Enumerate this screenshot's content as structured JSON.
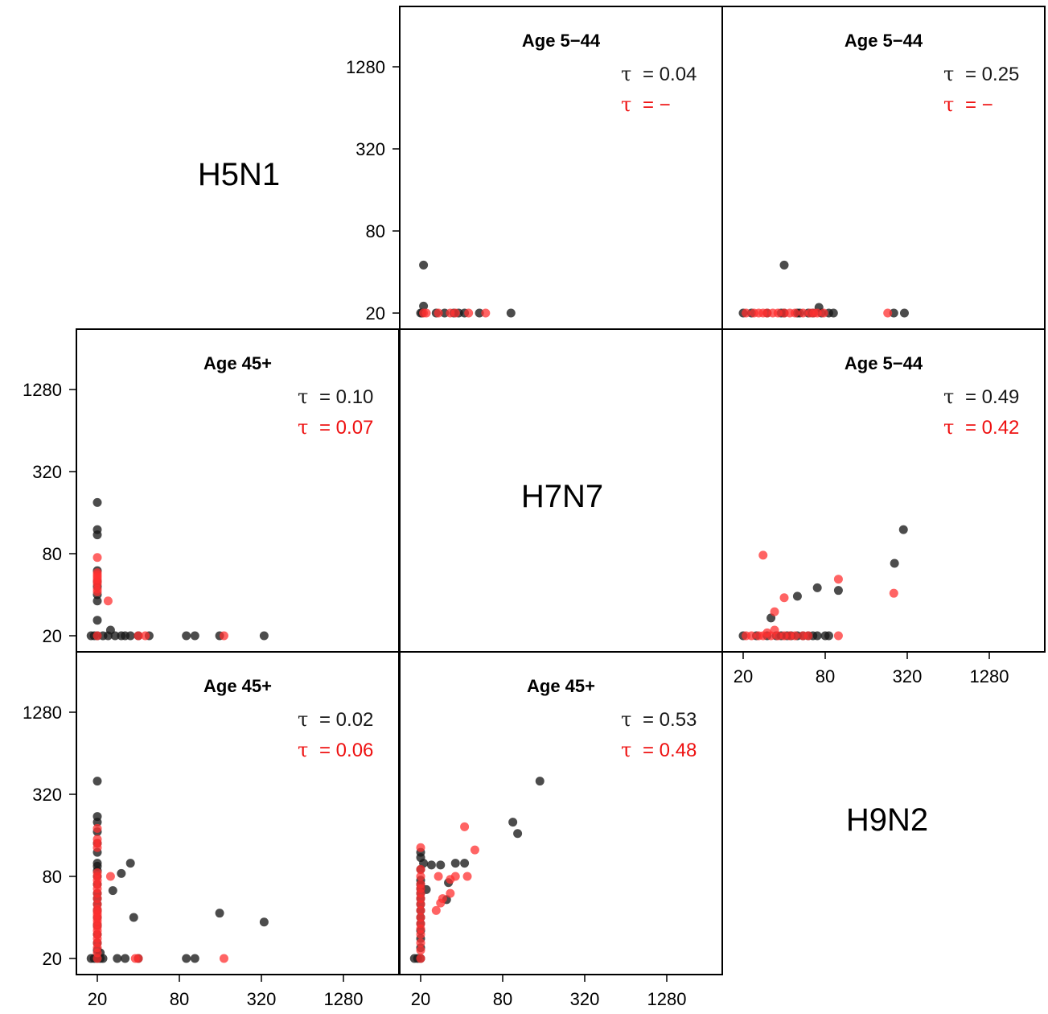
{
  "colors": {
    "black": "#1a1a1a",
    "red": "#ff3030",
    "red_text": "#ee1111"
  },
  "chart_data": {
    "type": "scatter",
    "scale": "log2",
    "axis_range": [
      16,
      2900
    ],
    "ticks": [
      {
        "value": 20,
        "label": "20"
      },
      {
        "value": 80,
        "label": "80"
      },
      {
        "value": 320,
        "label": "320"
      },
      {
        "value": 1280,
        "label": "1280"
      }
    ],
    "diagonal": [
      "H5N1",
      "H7N7",
      "H9N2"
    ],
    "tau_symbol": "τ",
    "panels": [
      {
        "id": "p12",
        "row": 0,
        "col": 1,
        "title": "Age 5−44",
        "tau_black": "= 0.04",
        "tau_red": "= −",
        "black": [
          [
            20,
            20
          ],
          [
            20.5,
            20
          ],
          [
            21,
            22.5
          ],
          [
            21,
            45
          ],
          [
            26,
            20
          ],
          [
            30,
            20
          ],
          [
            35,
            20
          ],
          [
            38,
            20
          ],
          [
            42,
            20
          ],
          [
            54,
            20
          ],
          [
            92,
            20
          ]
        ],
        "red": [
          [
            21,
            20
          ],
          [
            22,
            20
          ],
          [
            27,
            20
          ],
          [
            33,
            20
          ],
          [
            36,
            20
          ],
          [
            45,
            20
          ],
          [
            60,
            20
          ]
        ]
      },
      {
        "id": "p13",
        "row": 0,
        "col": 2,
        "title": "Age 5−44",
        "tau_black": "= 0.25",
        "tau_red": "= −",
        "black": [
          [
            20,
            20
          ],
          [
            23,
            20
          ],
          [
            30,
            20
          ],
          [
            38,
            20
          ],
          [
            40,
            20
          ],
          [
            40,
            45
          ],
          [
            50,
            20
          ],
          [
            52,
            20
          ],
          [
            60,
            20
          ],
          [
            65,
            20
          ],
          [
            72,
            22
          ],
          [
            75,
            20
          ],
          [
            85,
            20
          ],
          [
            92,
            20
          ],
          [
            255,
            20
          ],
          [
            305,
            20
          ]
        ],
        "red": [
          [
            21,
            20
          ],
          [
            24,
            20
          ],
          [
            26,
            20
          ],
          [
            28,
            20
          ],
          [
            30,
            20
          ],
          [
            33,
            20
          ],
          [
            36,
            20
          ],
          [
            40,
            20
          ],
          [
            44,
            20
          ],
          [
            48,
            20
          ],
          [
            55,
            20
          ],
          [
            62,
            20
          ],
          [
            66,
            20
          ],
          [
            70,
            20
          ],
          [
            78,
            20
          ],
          [
            230,
            20
          ]
        ]
      },
      {
        "id": "p21",
        "row": 1,
        "col": 0,
        "title": "Age 45+",
        "tau_black": "= 0.10",
        "tau_red": "= 0.07",
        "black": [
          [
            18,
            20
          ],
          [
            19,
            20
          ],
          [
            20,
            20
          ],
          [
            20,
            26
          ],
          [
            20,
            36
          ],
          [
            20,
            40
          ],
          [
            20,
            46
          ],
          [
            20,
            50
          ],
          [
            20,
            60
          ],
          [
            20,
            110
          ],
          [
            20,
            120
          ],
          [
            20,
            190
          ],
          [
            22,
            20
          ],
          [
            24,
            20
          ],
          [
            25,
            22
          ],
          [
            27,
            20
          ],
          [
            30,
            20
          ],
          [
            32,
            20
          ],
          [
            35,
            20
          ],
          [
            40,
            20
          ],
          [
            48,
            20
          ],
          [
            90,
            20
          ],
          [
            104,
            20
          ],
          [
            158,
            20
          ],
          [
            335,
            20
          ]
        ],
        "red": [
          [
            20,
            20
          ],
          [
            20,
            42
          ],
          [
            20,
            44
          ],
          [
            20,
            48
          ],
          [
            20,
            50
          ],
          [
            20,
            52
          ],
          [
            20,
            54
          ],
          [
            20,
            56
          ],
          [
            20,
            58
          ],
          [
            20,
            75
          ],
          [
            24,
            36
          ],
          [
            40,
            20
          ],
          [
            45,
            20
          ],
          [
            170,
            20
          ]
        ]
      },
      {
        "id": "p23",
        "row": 1,
        "col": 2,
        "title": "Age 5−44",
        "tau_black": "= 0.49",
        "tau_red": "= 0.42",
        "black": [
          [
            20,
            20
          ],
          [
            25,
            20
          ],
          [
            30,
            20
          ],
          [
            35,
            20
          ],
          [
            38,
            20
          ],
          [
            42,
            20
          ],
          [
            45,
            20
          ],
          [
            50,
            20
          ],
          [
            55,
            20
          ],
          [
            60,
            20
          ],
          [
            65,
            20
          ],
          [
            70,
            20
          ],
          [
            80,
            20
          ],
          [
            85,
            20
          ],
          [
            32,
            27
          ],
          [
            50,
            39
          ],
          [
            70,
            45
          ],
          [
            100,
            43
          ],
          [
            258,
            68
          ],
          [
            300,
            120
          ]
        ],
        "red": [
          [
            21,
            20
          ],
          [
            23,
            20
          ],
          [
            26,
            20
          ],
          [
            28,
            20
          ],
          [
            30,
            21
          ],
          [
            32,
            20
          ],
          [
            34,
            22
          ],
          [
            36,
            20
          ],
          [
            40,
            20
          ],
          [
            44,
            20
          ],
          [
            48,
            20
          ],
          [
            55,
            20
          ],
          [
            60,
            20
          ],
          [
            100,
            20
          ],
          [
            28,
            78
          ],
          [
            34,
            30
          ],
          [
            40,
            38
          ],
          [
            100,
            52
          ],
          [
            255,
            41
          ]
        ]
      },
      {
        "id": "p31",
        "row": 2,
        "col": 0,
        "title": "Age 45+",
        "tau_black": "= 0.02",
        "tau_red": "= 0.06",
        "black": [
          [
            18,
            20
          ],
          [
            19,
            20
          ],
          [
            20,
            20
          ],
          [
            20,
            23
          ],
          [
            20,
            26
          ],
          [
            20,
            30
          ],
          [
            20,
            35
          ],
          [
            20,
            40
          ],
          [
            20,
            45
          ],
          [
            20,
            50
          ],
          [
            20,
            55
          ],
          [
            20,
            60
          ],
          [
            20,
            70
          ],
          [
            20,
            80
          ],
          [
            20,
            88
          ],
          [
            20,
            95
          ],
          [
            20,
            100
          ],
          [
            20,
            120
          ],
          [
            20,
            140
          ],
          [
            20,
            170
          ],
          [
            20,
            200
          ],
          [
            20,
            220
          ],
          [
            20,
            400
          ],
          [
            21,
            22
          ],
          [
            21,
            20
          ],
          [
            22,
            20
          ],
          [
            26,
            63
          ],
          [
            28,
            20
          ],
          [
            30,
            84
          ],
          [
            32,
            20
          ],
          [
            35,
            100
          ],
          [
            37,
            40
          ],
          [
            40,
            20
          ],
          [
            90,
            20
          ],
          [
            104,
            20
          ],
          [
            158,
            43
          ],
          [
            335,
            37
          ]
        ],
        "red": [
          [
            20,
            20
          ],
          [
            20,
            22
          ],
          [
            20,
            24
          ],
          [
            20,
            26
          ],
          [
            20,
            28
          ],
          [
            20,
            30
          ],
          [
            20,
            32
          ],
          [
            20,
            34
          ],
          [
            20,
            36
          ],
          [
            20,
            38
          ],
          [
            20,
            40
          ],
          [
            20,
            42
          ],
          [
            20,
            44
          ],
          [
            20,
            46
          ],
          [
            20,
            50
          ],
          [
            20,
            55
          ],
          [
            20,
            60
          ],
          [
            20,
            65
          ],
          [
            20,
            70
          ],
          [
            20,
            75
          ],
          [
            20,
            80
          ],
          [
            20,
            85
          ],
          [
            20,
            130
          ],
          [
            20,
            140
          ],
          [
            20,
            150
          ],
          [
            20,
            180
          ],
          [
            25,
            80
          ],
          [
            38,
            20
          ],
          [
            40,
            20
          ],
          [
            170,
            20
          ]
        ]
      },
      {
        "id": "p32",
        "row": 2,
        "col": 1,
        "title": "Age 45+",
        "tau_black": "= 0.53",
        "tau_red": "= 0.48",
        "black": [
          [
            18,
            20
          ],
          [
            19,
            20
          ],
          [
            20,
            20
          ],
          [
            20,
            24
          ],
          [
            20,
            28
          ],
          [
            20,
            32
          ],
          [
            20,
            36
          ],
          [
            20,
            40
          ],
          [
            20,
            45
          ],
          [
            20,
            50
          ],
          [
            20,
            55
          ],
          [
            20,
            60
          ],
          [
            20,
            65
          ],
          [
            20,
            70
          ],
          [
            20,
            75
          ],
          [
            20,
            90
          ],
          [
            20,
            110
          ],
          [
            20,
            120
          ],
          [
            21,
            100
          ],
          [
            22,
            64
          ],
          [
            24,
            97
          ],
          [
            28,
            97
          ],
          [
            31,
            54
          ],
          [
            32,
            72
          ],
          [
            36,
            100
          ],
          [
            42,
            100
          ],
          [
            95,
            200
          ],
          [
            103,
            165
          ],
          [
            150,
            400
          ]
        ],
        "red": [
          [
            20,
            20
          ],
          [
            20,
            23
          ],
          [
            20,
            26
          ],
          [
            20,
            30
          ],
          [
            20,
            33
          ],
          [
            20,
            36
          ],
          [
            20,
            40
          ],
          [
            20,
            45
          ],
          [
            20,
            50
          ],
          [
            20,
            55
          ],
          [
            20,
            60
          ],
          [
            20,
            65
          ],
          [
            20,
            70
          ],
          [
            20,
            80
          ],
          [
            20,
            90
          ],
          [
            20,
            130
          ],
          [
            26,
            45
          ],
          [
            27,
            80
          ],
          [
            28,
            51
          ],
          [
            29,
            55
          ],
          [
            33,
            76
          ],
          [
            33,
            60
          ],
          [
            36,
            80
          ],
          [
            42,
            185
          ],
          [
            50,
            125
          ],
          [
            44,
            80
          ]
        ]
      }
    ]
  }
}
